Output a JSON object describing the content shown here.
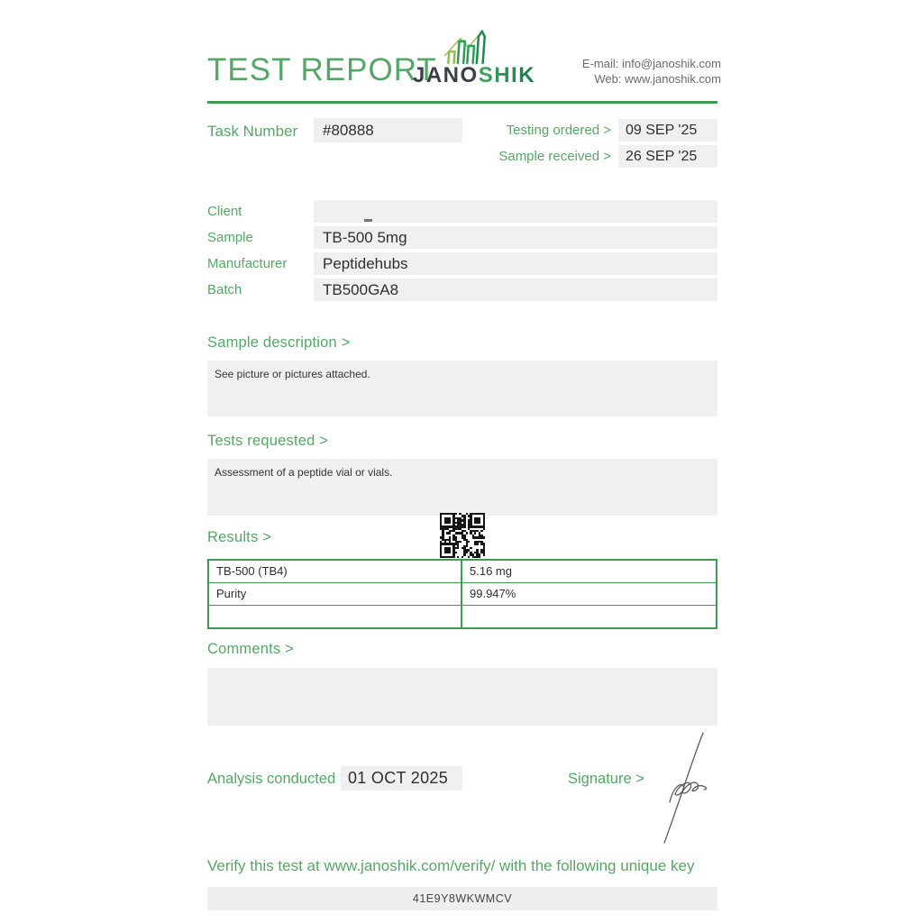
{
  "header": {
    "title": "TEST REPORT",
    "logo_jano": "JANO",
    "logo_shik": "SHIK",
    "email_line": "E-mail: info@janoshik.com",
    "web_line": "Web: www.janoshik.com"
  },
  "task": {
    "label": "Task Number",
    "number": "#80888",
    "testing_ordered_label": "Testing ordered >",
    "testing_ordered_date": "09 SEP '25",
    "sample_received_label": "Sample received >",
    "sample_received_date": "26 SEP '25"
  },
  "info": {
    "client_label": "Client",
    "client_value": "",
    "sample_label": "Sample",
    "sample_value": "TB-500 5mg",
    "manufacturer_label": "Manufacturer",
    "manufacturer_value": "Peptidehubs",
    "batch_label": "Batch",
    "batch_value": "TB500GA8"
  },
  "sections": {
    "sample_description_heading": "Sample description >",
    "sample_description_text": "See picture or pictures attached.",
    "tests_requested_heading": "Tests requested >",
    "tests_requested_text": "Assessment of a peptide vial or vials.",
    "results_heading": "Results >",
    "comments_heading": "Comments >",
    "comments_text": ""
  },
  "results_table": {
    "rows": [
      {
        "name": "TB-500 (TB4)",
        "value": "5.16 mg"
      },
      {
        "name": "Purity",
        "value": "99.947%"
      },
      {
        "name": "",
        "value": ""
      }
    ]
  },
  "footer": {
    "analysis_label": "Analysis conducted >",
    "analysis_date": "01 OCT 2025",
    "signature_label": "Signature >",
    "verify_text": "Verify this test at www.janoshik.com/verify/ with the following unique key",
    "unique_key": "41E9Y8WKWMCV"
  },
  "colors": {
    "accent_green": "#55a667",
    "border_green": "#3d9b52",
    "logo_charcoal": "#3b4247",
    "box_gray": "#f0f0f0",
    "text_dark": "#2e2e2e"
  }
}
